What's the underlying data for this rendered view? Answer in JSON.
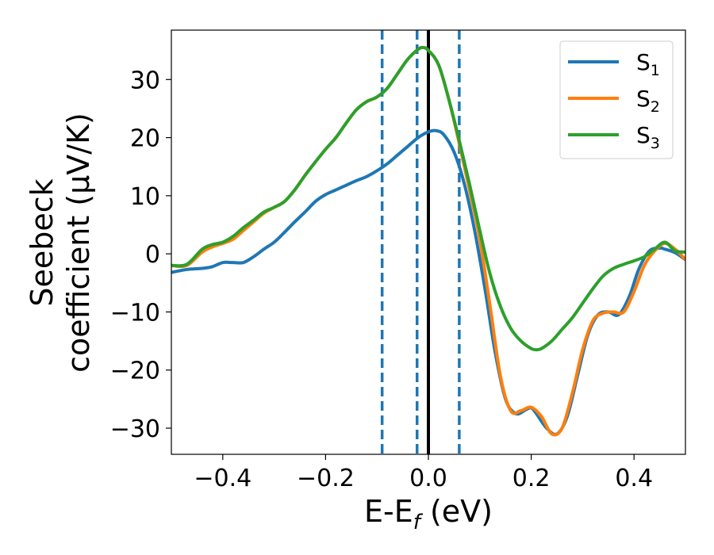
{
  "chart_data": {
    "type": "line",
    "xlabel": "E-E",
    "xlabel_sub": "f",
    "xlabel_unit": " (eV)",
    "ylabel_line1": "Seebeck",
    "ylabel_line2": "coefficient  (μV/K)",
    "xlim": [
      -0.5,
      0.5
    ],
    "ylim": [
      -34.5,
      38.5
    ],
    "xticks": [
      -0.4,
      -0.2,
      0.0,
      0.2,
      0.4
    ],
    "xtick_labels": [
      "−0.4",
      "−0.2",
      "0.0",
      "0.2",
      "0.4"
    ],
    "yticks": [
      -30,
      -20,
      -10,
      0,
      10,
      20,
      30
    ],
    "ytick_labels": [
      "−30",
      "−20",
      "−10",
      "0",
      "10",
      "20",
      "30"
    ],
    "grid": false,
    "legend_position": "top-right",
    "vlines": [
      {
        "x": -0.09,
        "style": "dashed",
        "color": "#1f77b4"
      },
      {
        "x": -0.022,
        "style": "dashed",
        "color": "#1f77b4"
      },
      {
        "x": 0.0,
        "style": "solid",
        "color": "#000000"
      },
      {
        "x": 0.06,
        "style": "dashed",
        "color": "#1f77b4"
      }
    ],
    "series": [
      {
        "name": "S",
        "sub": "1",
        "color": "#1f77b4",
        "x": [
          -0.5,
          -0.47,
          -0.44,
          -0.42,
          -0.4,
          -0.38,
          -0.36,
          -0.34,
          -0.32,
          -0.3,
          -0.28,
          -0.26,
          -0.24,
          -0.22,
          -0.2,
          -0.18,
          -0.16,
          -0.14,
          -0.12,
          -0.1,
          -0.08,
          -0.06,
          -0.04,
          -0.02,
          0.0,
          0.015,
          0.03,
          0.05,
          0.07,
          0.09,
          0.11,
          0.13,
          0.15,
          0.17,
          0.19,
          0.2,
          0.21,
          0.23,
          0.25,
          0.27,
          0.29,
          0.31,
          0.33,
          0.35,
          0.37,
          0.39,
          0.41,
          0.43,
          0.45,
          0.46,
          0.48,
          0.5
        ],
        "y": [
          -3.2,
          -2.7,
          -2.5,
          -2.2,
          -1.5,
          -1.5,
          -1.5,
          -0.5,
          0.8,
          2.0,
          3.7,
          5.5,
          7.2,
          9.0,
          10.2,
          11.0,
          11.8,
          12.6,
          13.3,
          14.3,
          15.5,
          17.0,
          18.5,
          20.0,
          21.0,
          21.2,
          20.5,
          17.5,
          12.0,
          4.0,
          -6.0,
          -17.0,
          -25.0,
          -27.5,
          -26.8,
          -26.5,
          -27.5,
          -30.0,
          -31.0,
          -28.0,
          -21.0,
          -14.0,
          -10.5,
          -10.0,
          -10.5,
          -7.5,
          -2.5,
          0.5,
          1.0,
          0.8,
          0.2,
          -1.0
        ]
      },
      {
        "name": "S",
        "sub": "2",
        "color": "#ff7f0e",
        "x": [
          -0.5,
          -0.47,
          -0.44,
          -0.42,
          -0.4,
          -0.38,
          -0.36,
          -0.34,
          -0.32,
          -0.3,
          -0.28,
          -0.26,
          -0.24,
          -0.22,
          -0.2,
          -0.18,
          -0.16,
          -0.14,
          -0.12,
          -0.1,
          -0.08,
          -0.06,
          -0.04,
          -0.02,
          -0.01,
          0.0,
          0.02,
          0.04,
          0.06,
          0.08,
          0.1,
          0.12,
          0.14,
          0.16,
          0.18,
          0.2,
          0.22,
          0.24,
          0.26,
          0.28,
          0.3,
          0.32,
          0.34,
          0.36,
          0.38,
          0.4,
          0.42,
          0.44,
          0.46,
          0.48,
          0.5
        ],
        "y": [
          -2.0,
          -2.0,
          0.3,
          1.2,
          1.8,
          2.5,
          4.0,
          5.5,
          7.0,
          8.0,
          9.0,
          11.0,
          13.5,
          15.8,
          18.0,
          20.0,
          22.5,
          24.8,
          26.2,
          27.0,
          28.5,
          31.0,
          33.5,
          35.2,
          35.5,
          35.0,
          32.5,
          26.5,
          19.0,
          11.0,
          2.5,
          -9.0,
          -21.0,
          -27.0,
          -27.0,
          -26.4,
          -28.0,
          -31.0,
          -30.0,
          -24.0,
          -16.5,
          -11.5,
          -10.2,
          -10.0,
          -10.0,
          -6.5,
          -2.0,
          0.5,
          1.8,
          0.8,
          -1.0
        ]
      },
      {
        "name": "S",
        "sub": "3",
        "color": "#2ca02c",
        "x": [
          -0.5,
          -0.47,
          -0.44,
          -0.42,
          -0.4,
          -0.38,
          -0.36,
          -0.34,
          -0.32,
          -0.3,
          -0.28,
          -0.26,
          -0.24,
          -0.22,
          -0.2,
          -0.18,
          -0.16,
          -0.14,
          -0.12,
          -0.1,
          -0.08,
          -0.06,
          -0.04,
          -0.02,
          -0.01,
          0.0,
          0.02,
          0.04,
          0.06,
          0.08,
          0.1,
          0.12,
          0.14,
          0.16,
          0.18,
          0.2,
          0.21,
          0.22,
          0.24,
          0.26,
          0.28,
          0.3,
          0.32,
          0.34,
          0.36,
          0.38,
          0.4,
          0.42,
          0.44,
          0.46,
          0.48,
          0.5
        ],
        "y": [
          -2.0,
          -1.8,
          0.8,
          1.6,
          2.0,
          3.0,
          4.5,
          5.8,
          7.2,
          8.0,
          9.0,
          11.0,
          13.5,
          15.8,
          18.0,
          20.0,
          22.5,
          24.8,
          26.2,
          27.0,
          28.5,
          31.0,
          33.5,
          35.2,
          35.5,
          35.0,
          32.5,
          26.5,
          19.5,
          12.0,
          4.0,
          -3.5,
          -9.0,
          -12.8,
          -15.0,
          -16.3,
          -16.5,
          -16.3,
          -15.0,
          -13.0,
          -11.0,
          -8.5,
          -6.0,
          -3.8,
          -2.5,
          -1.8,
          -1.2,
          -0.5,
          0.8,
          2.0,
          0.5,
          0.3
        ]
      }
    ]
  }
}
